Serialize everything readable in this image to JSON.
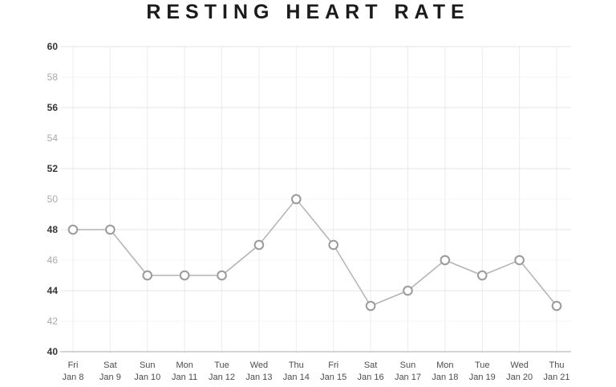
{
  "chart_data": {
    "type": "line",
    "title": "RESTING HEART RATE",
    "categories": [
      {
        "day": "Fri",
        "date": "Jan 8"
      },
      {
        "day": "Sat",
        "date": "Jan 9"
      },
      {
        "day": "Sun",
        "date": "Jan 10"
      },
      {
        "day": "Mon",
        "date": "Jan 11"
      },
      {
        "day": "Tue",
        "date": "Jan 12"
      },
      {
        "day": "Wed",
        "date": "Jan 13"
      },
      {
        "day": "Thu",
        "date": "Jan 14"
      },
      {
        "day": "Fri",
        "date": "Jan 15"
      },
      {
        "day": "Sat",
        "date": "Jan 16"
      },
      {
        "day": "Sun",
        "date": "Jan 17"
      },
      {
        "day": "Mon",
        "date": "Jan 18"
      },
      {
        "day": "Tue",
        "date": "Jan 19"
      },
      {
        "day": "Wed",
        "date": "Jan 20"
      },
      {
        "day": "Thu",
        "date": "Jan 21"
      }
    ],
    "values": [
      48,
      48,
      45,
      45,
      45,
      47,
      50,
      47,
      43,
      44,
      46,
      45,
      46,
      43
    ],
    "ylim": [
      40,
      60
    ],
    "y_ticks": [
      40,
      42,
      44,
      46,
      48,
      50,
      52,
      54,
      56,
      58,
      60
    ],
    "ytick_step": 2,
    "xlabel": "",
    "ylabel": "",
    "grid": true,
    "legend": false,
    "marker": "circle"
  },
  "colors": {
    "background": "#ffffff",
    "title": "#1b1b1b",
    "y_label_major": "#363636",
    "y_label_minor": "#a9a9a9",
    "x_label": "#4c4c4c",
    "grid_vertical": "#ececec",
    "grid_major": "#e4e4e4",
    "grid_minor": "#f4f4f4",
    "baseline": "#c7c7c7",
    "line": "#b3b3b3",
    "point_fill": "#ffffff",
    "point_stroke": "#9b9b9b"
  }
}
